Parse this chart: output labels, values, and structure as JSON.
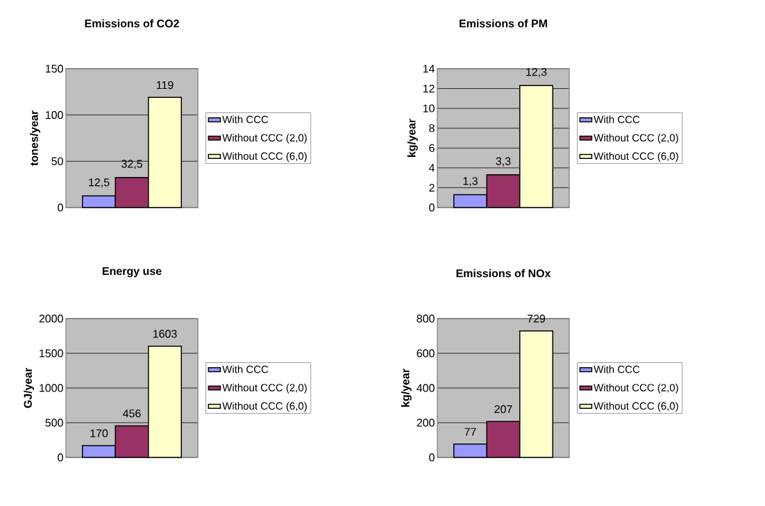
{
  "chart_data": [
    {
      "type": "bar",
      "title": "Emissions of CO2",
      "ylabel": "tones/year",
      "categories": [
        null
      ],
      "ylim": [
        0,
        150
      ],
      "yticks": [
        0,
        50,
        100,
        150
      ],
      "grid": "y",
      "legend": "right",
      "series": [
        {
          "name": "With CCC",
          "color": "#9999ff",
          "values": [
            12.5
          ],
          "value_labels": [
            "12,5"
          ]
        },
        {
          "name": "Without CCC (2,0)",
          "color": "#993366",
          "values": [
            32.5
          ],
          "value_labels": [
            "32,5"
          ]
        },
        {
          "name": "Without CCC (6,0)",
          "color": "#ffffcc",
          "values": [
            119
          ],
          "value_labels": [
            "119"
          ]
        }
      ]
    },
    {
      "type": "bar",
      "title": "Emissions of PM",
      "ylabel": "kg/year",
      "categories": [
        null
      ],
      "ylim": [
        0,
        14
      ],
      "yticks": [
        0,
        2,
        4,
        6,
        8,
        10,
        12,
        14
      ],
      "grid": "y",
      "legend": "right",
      "series": [
        {
          "name": "With CCC",
          "color": "#9999ff",
          "values": [
            1.3
          ],
          "value_labels": [
            "1,3"
          ]
        },
        {
          "name": "Without CCC (2,0)",
          "color": "#993366",
          "values": [
            3.3
          ],
          "value_labels": [
            "3,3"
          ]
        },
        {
          "name": "Without CCC (6,0)",
          "color": "#ffffcc",
          "values": [
            12.3
          ],
          "value_labels": [
            "12,3"
          ]
        }
      ]
    },
    {
      "type": "bar",
      "title": "Energy use",
      "ylabel": "GJ/year",
      "categories": [
        null
      ],
      "ylim": [
        0,
        2000
      ],
      "yticks": [
        0,
        500,
        1000,
        1500,
        2000
      ],
      "grid": "y",
      "legend": "right",
      "series": [
        {
          "name": "With CCC",
          "color": "#9999ff",
          "values": [
            170
          ],
          "value_labels": [
            "170"
          ]
        },
        {
          "name": "Without CCC (2,0)",
          "color": "#993366",
          "values": [
            456
          ],
          "value_labels": [
            "456"
          ]
        },
        {
          "name": "Without CCC (6,0)",
          "color": "#ffffcc",
          "values": [
            1603
          ],
          "value_labels": [
            "1603"
          ]
        }
      ]
    },
    {
      "type": "bar",
      "title": "Emissions of NOx",
      "ylabel": "kg/year",
      "categories": [
        null
      ],
      "ylim": [
        0,
        800
      ],
      "yticks": [
        0,
        200,
        400,
        600,
        800
      ],
      "grid": "y",
      "legend": "right",
      "series": [
        {
          "name": "With CCC",
          "color": "#9999ff",
          "values": [
            77
          ],
          "value_labels": [
            "77"
          ]
        },
        {
          "name": "Without CCC (2,0)",
          "color": "#993366",
          "values": [
            207
          ],
          "value_labels": [
            "207"
          ]
        },
        {
          "name": "Without CCC (6,0)",
          "color": "#ffffcc",
          "values": [
            729
          ],
          "value_labels": [
            "729"
          ]
        }
      ]
    }
  ]
}
